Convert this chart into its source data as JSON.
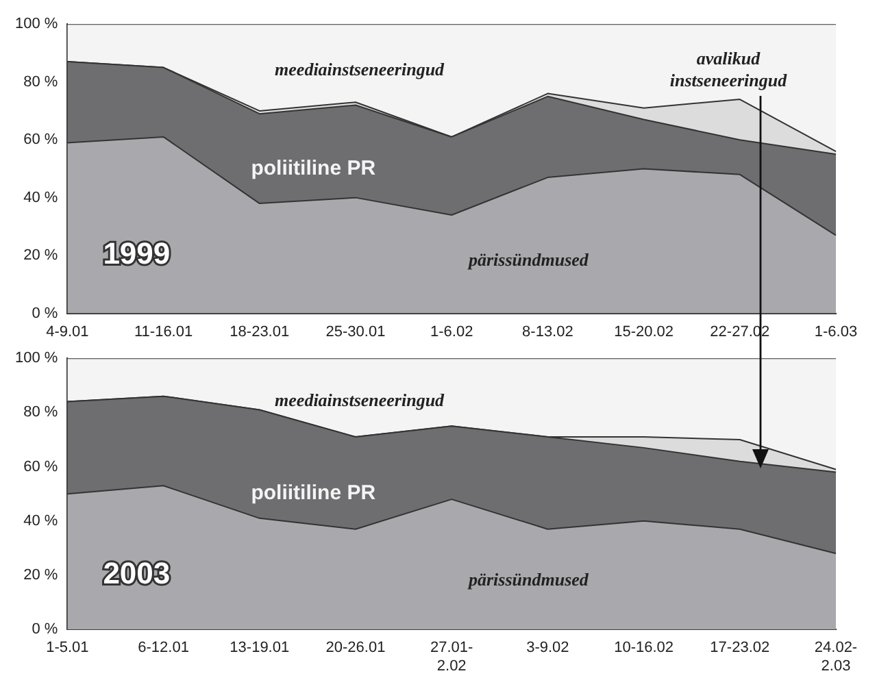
{
  "chart_data": [
    {
      "type": "area",
      "stacked": true,
      "legend": false,
      "grid": false,
      "categories": [
        "4-9.01",
        "11-16.01",
        "18-23.01",
        "25-30.01",
        "1-6.02",
        "8-13.02",
        "15-20.02",
        "22-27.02",
        "1-6.03"
      ],
      "series": [
        {
          "name": "pärissündmused",
          "color": "#a9a9ad",
          "values": [
            59,
            61,
            38,
            40,
            34,
            47,
            50,
            48,
            27
          ]
        },
        {
          "name": "poliitiline PR",
          "color": "#6e6e70",
          "values": [
            28,
            24,
            31,
            32,
            27,
            28,
            17,
            12,
            28
          ]
        },
        {
          "name": "avalikud instseneeringud",
          "color": "#dcdcdc",
          "values": [
            0,
            0,
            1,
            1,
            0,
            1,
            4,
            14,
            1
          ]
        },
        {
          "name": "meediainstseneeringud",
          "color": "#f4f4f4",
          "values": [
            13,
            15,
            30,
            27,
            39,
            24,
            29,
            26,
            44
          ]
        }
      ],
      "ylim": [
        0,
        100
      ],
      "yticks": [
        {
          "value": 0,
          "label": "0 %"
        },
        {
          "value": 20,
          "label": "20 %"
        },
        {
          "value": 40,
          "label": "40 %"
        },
        {
          "value": 60,
          "label": "60 %"
        },
        {
          "value": 80,
          "label": "80 %"
        },
        {
          "value": 100,
          "label": "100 %"
        }
      ],
      "annotations": [
        "1999"
      ]
    },
    {
      "type": "area",
      "stacked": true,
      "legend": false,
      "grid": false,
      "categories": [
        "1-5.01",
        "6-12.01",
        "13-19.01",
        "20-26.01",
        "27.01-2.02",
        "3-9.02",
        "10-16.02",
        "17-23.02",
        "24.02-2.03"
      ],
      "series": [
        {
          "name": "pärissündmused",
          "color": "#a9a9ad",
          "values": [
            50,
            53,
            41,
            37,
            48,
            37,
            40,
            37,
            28
          ]
        },
        {
          "name": "poliitiline PR",
          "color": "#6e6e70",
          "values": [
            34,
            33,
            40,
            34,
            27,
            34,
            27,
            25,
            30
          ]
        },
        {
          "color": "#dcdcdc",
          "values": [
            0,
            0,
            0,
            0,
            0,
            0,
            4,
            8,
            1
          ]
        },
        {
          "name": "meediainstseneeringud",
          "color": "#f4f4f4",
          "values": [
            16,
            14,
            19,
            29,
            25,
            29,
            29,
            30,
            41
          ]
        }
      ],
      "ylim": [
        0,
        100
      ],
      "yticks": [
        {
          "value": 0,
          "label": "0 %"
        },
        {
          "value": 20,
          "label": "20 %"
        },
        {
          "value": 40,
          "label": "40 %"
        },
        {
          "value": 60,
          "label": "60 %"
        },
        {
          "value": 80,
          "label": "80 %"
        },
        {
          "value": 100,
          "label": "100 %"
        }
      ],
      "annotations": [
        "2003"
      ]
    }
  ]
}
